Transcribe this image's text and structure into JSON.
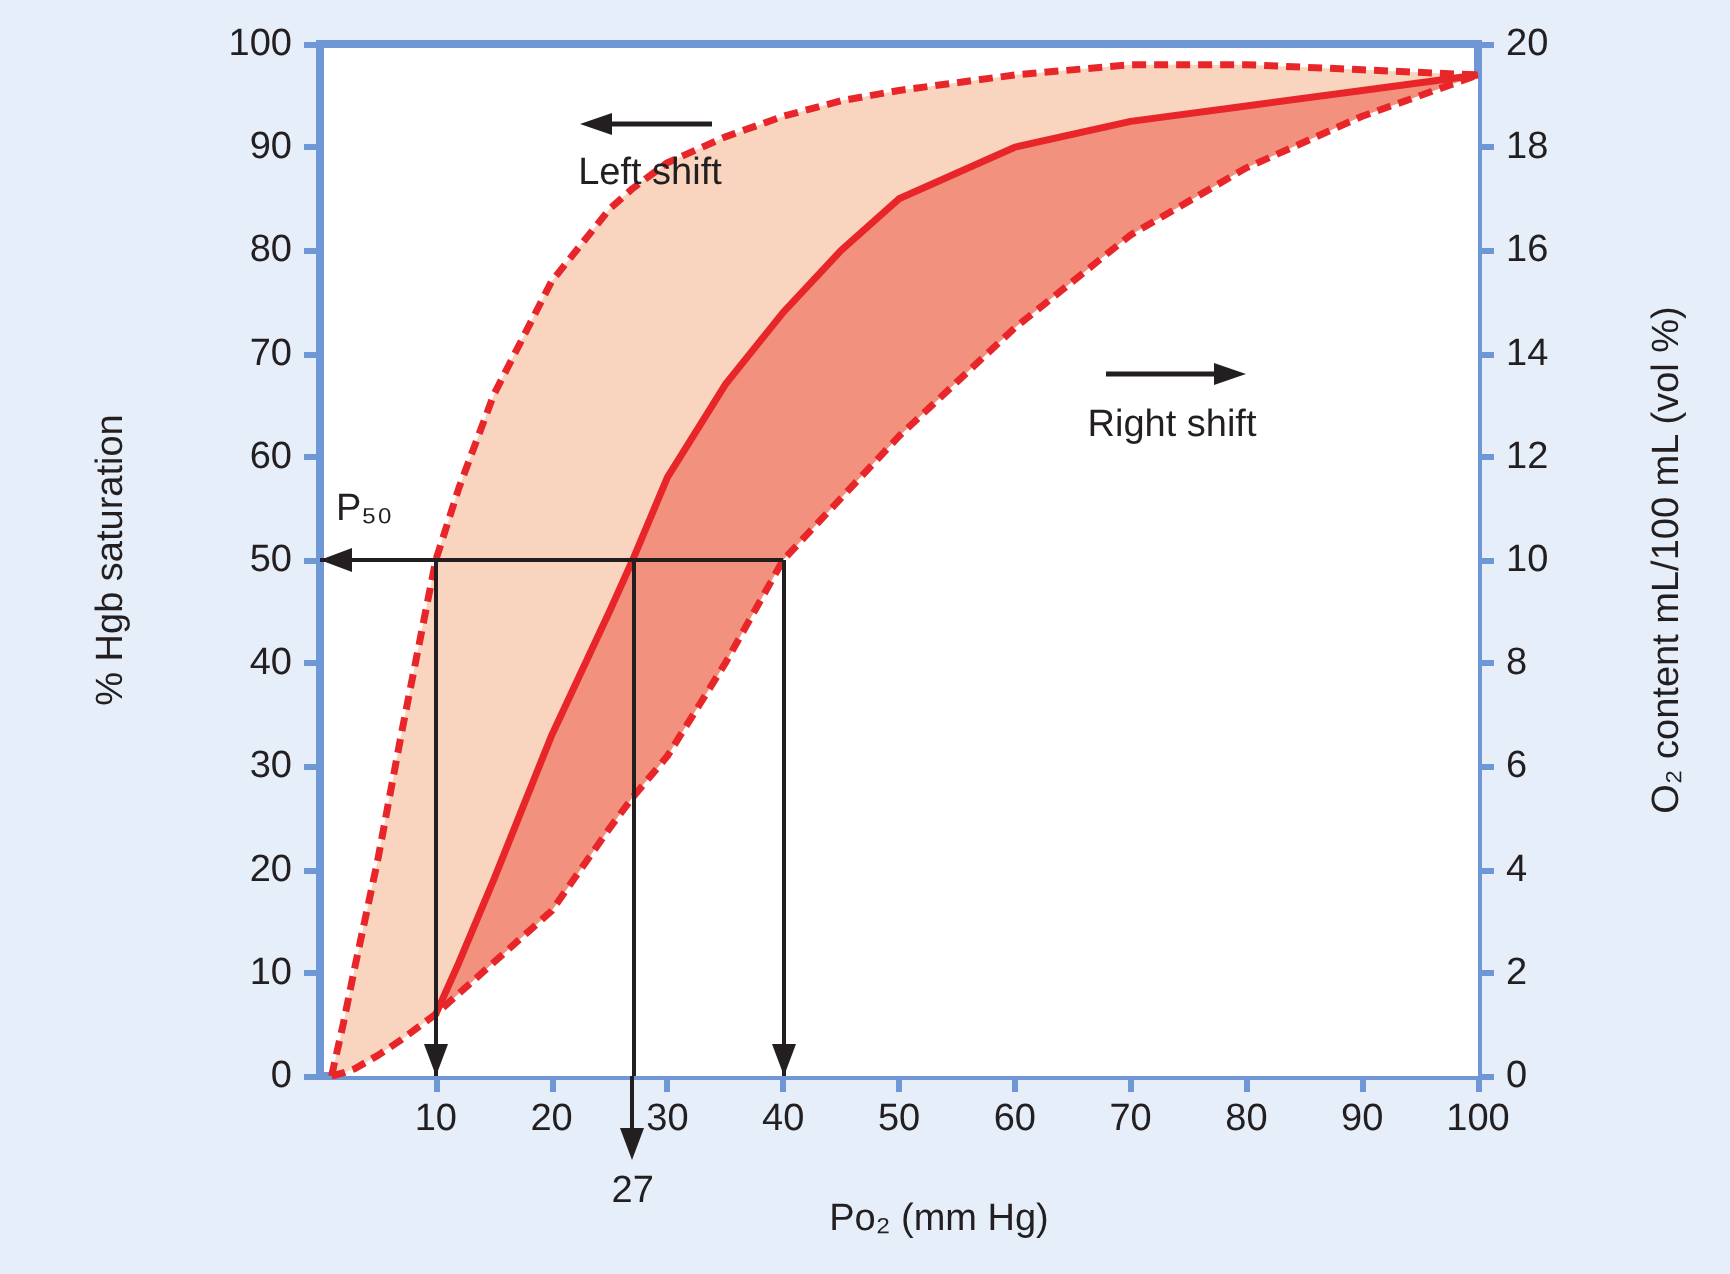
{
  "chart_data": {
    "type": "line",
    "xlabel": "Po₂ (mm Hg)",
    "ylabel": "% Hgb saturation",
    "y2label": "O₂ content mL/100 mL (vol %)",
    "x": [
      1,
      2,
      3,
      5,
      7,
      10,
      12,
      15,
      20,
      25,
      27,
      30,
      35,
      40,
      45,
      50,
      60,
      70,
      80,
      90,
      100
    ],
    "series": [
      {
        "type": "area",
        "color": "#e8262a",
        "line_style": "dashed",
        "values": [
          0,
          5,
          10.5,
          21,
          33,
          50,
          57,
          66,
          77,
          84,
          86,
          88.5,
          91,
          93,
          94.5,
          95.5,
          97,
          98,
          98,
          97.5,
          97
        ]
      },
      {
        "type": "area",
        "color": "#e8262a",
        "line_style": "solid",
        "values": [
          null,
          null,
          null,
          null,
          null,
          6,
          11,
          19,
          33,
          45,
          50,
          58,
          67,
          74,
          80,
          85,
          90,
          92.5,
          94,
          95.5,
          97
        ]
      },
      {
        "type": "area",
        "color": "#e8262a",
        "line_style": "dashed",
        "values": [
          0,
          0.3,
          0.7,
          2,
          3.5,
          6,
          8,
          11,
          16,
          24,
          27,
          31,
          40,
          50,
          56,
          62,
          72.5,
          81.5,
          88,
          93,
          97
        ]
      }
    ],
    "xlim": [
      0,
      100
    ],
    "xticks": [
      10,
      20,
      30,
      40,
      50,
      60,
      70,
      80,
      90,
      100
    ],
    "ylim": [
      0,
      100
    ],
    "yticks": [
      0,
      10,
      20,
      30,
      40,
      50,
      60,
      70,
      80,
      90,
      100
    ],
    "y2lim": [
      0,
      20
    ],
    "y2ticks": [
      0,
      2,
      4,
      6,
      8,
      10,
      12,
      14,
      16,
      18,
      20
    ],
    "ref_lines": [
      {
        "axis": "y",
        "value": 50,
        "label": "P₅₀",
        "color": "#231f20"
      },
      {
        "axis": "x",
        "value": 10,
        "color": "#231f20"
      },
      {
        "axis": "x",
        "value": 27,
        "label": "27",
        "color": "#231f20"
      },
      {
        "axis": "x",
        "value": 40,
        "color": "#231f20"
      }
    ],
    "annotations": [
      "Left shift",
      "Right shift"
    ]
  }
}
